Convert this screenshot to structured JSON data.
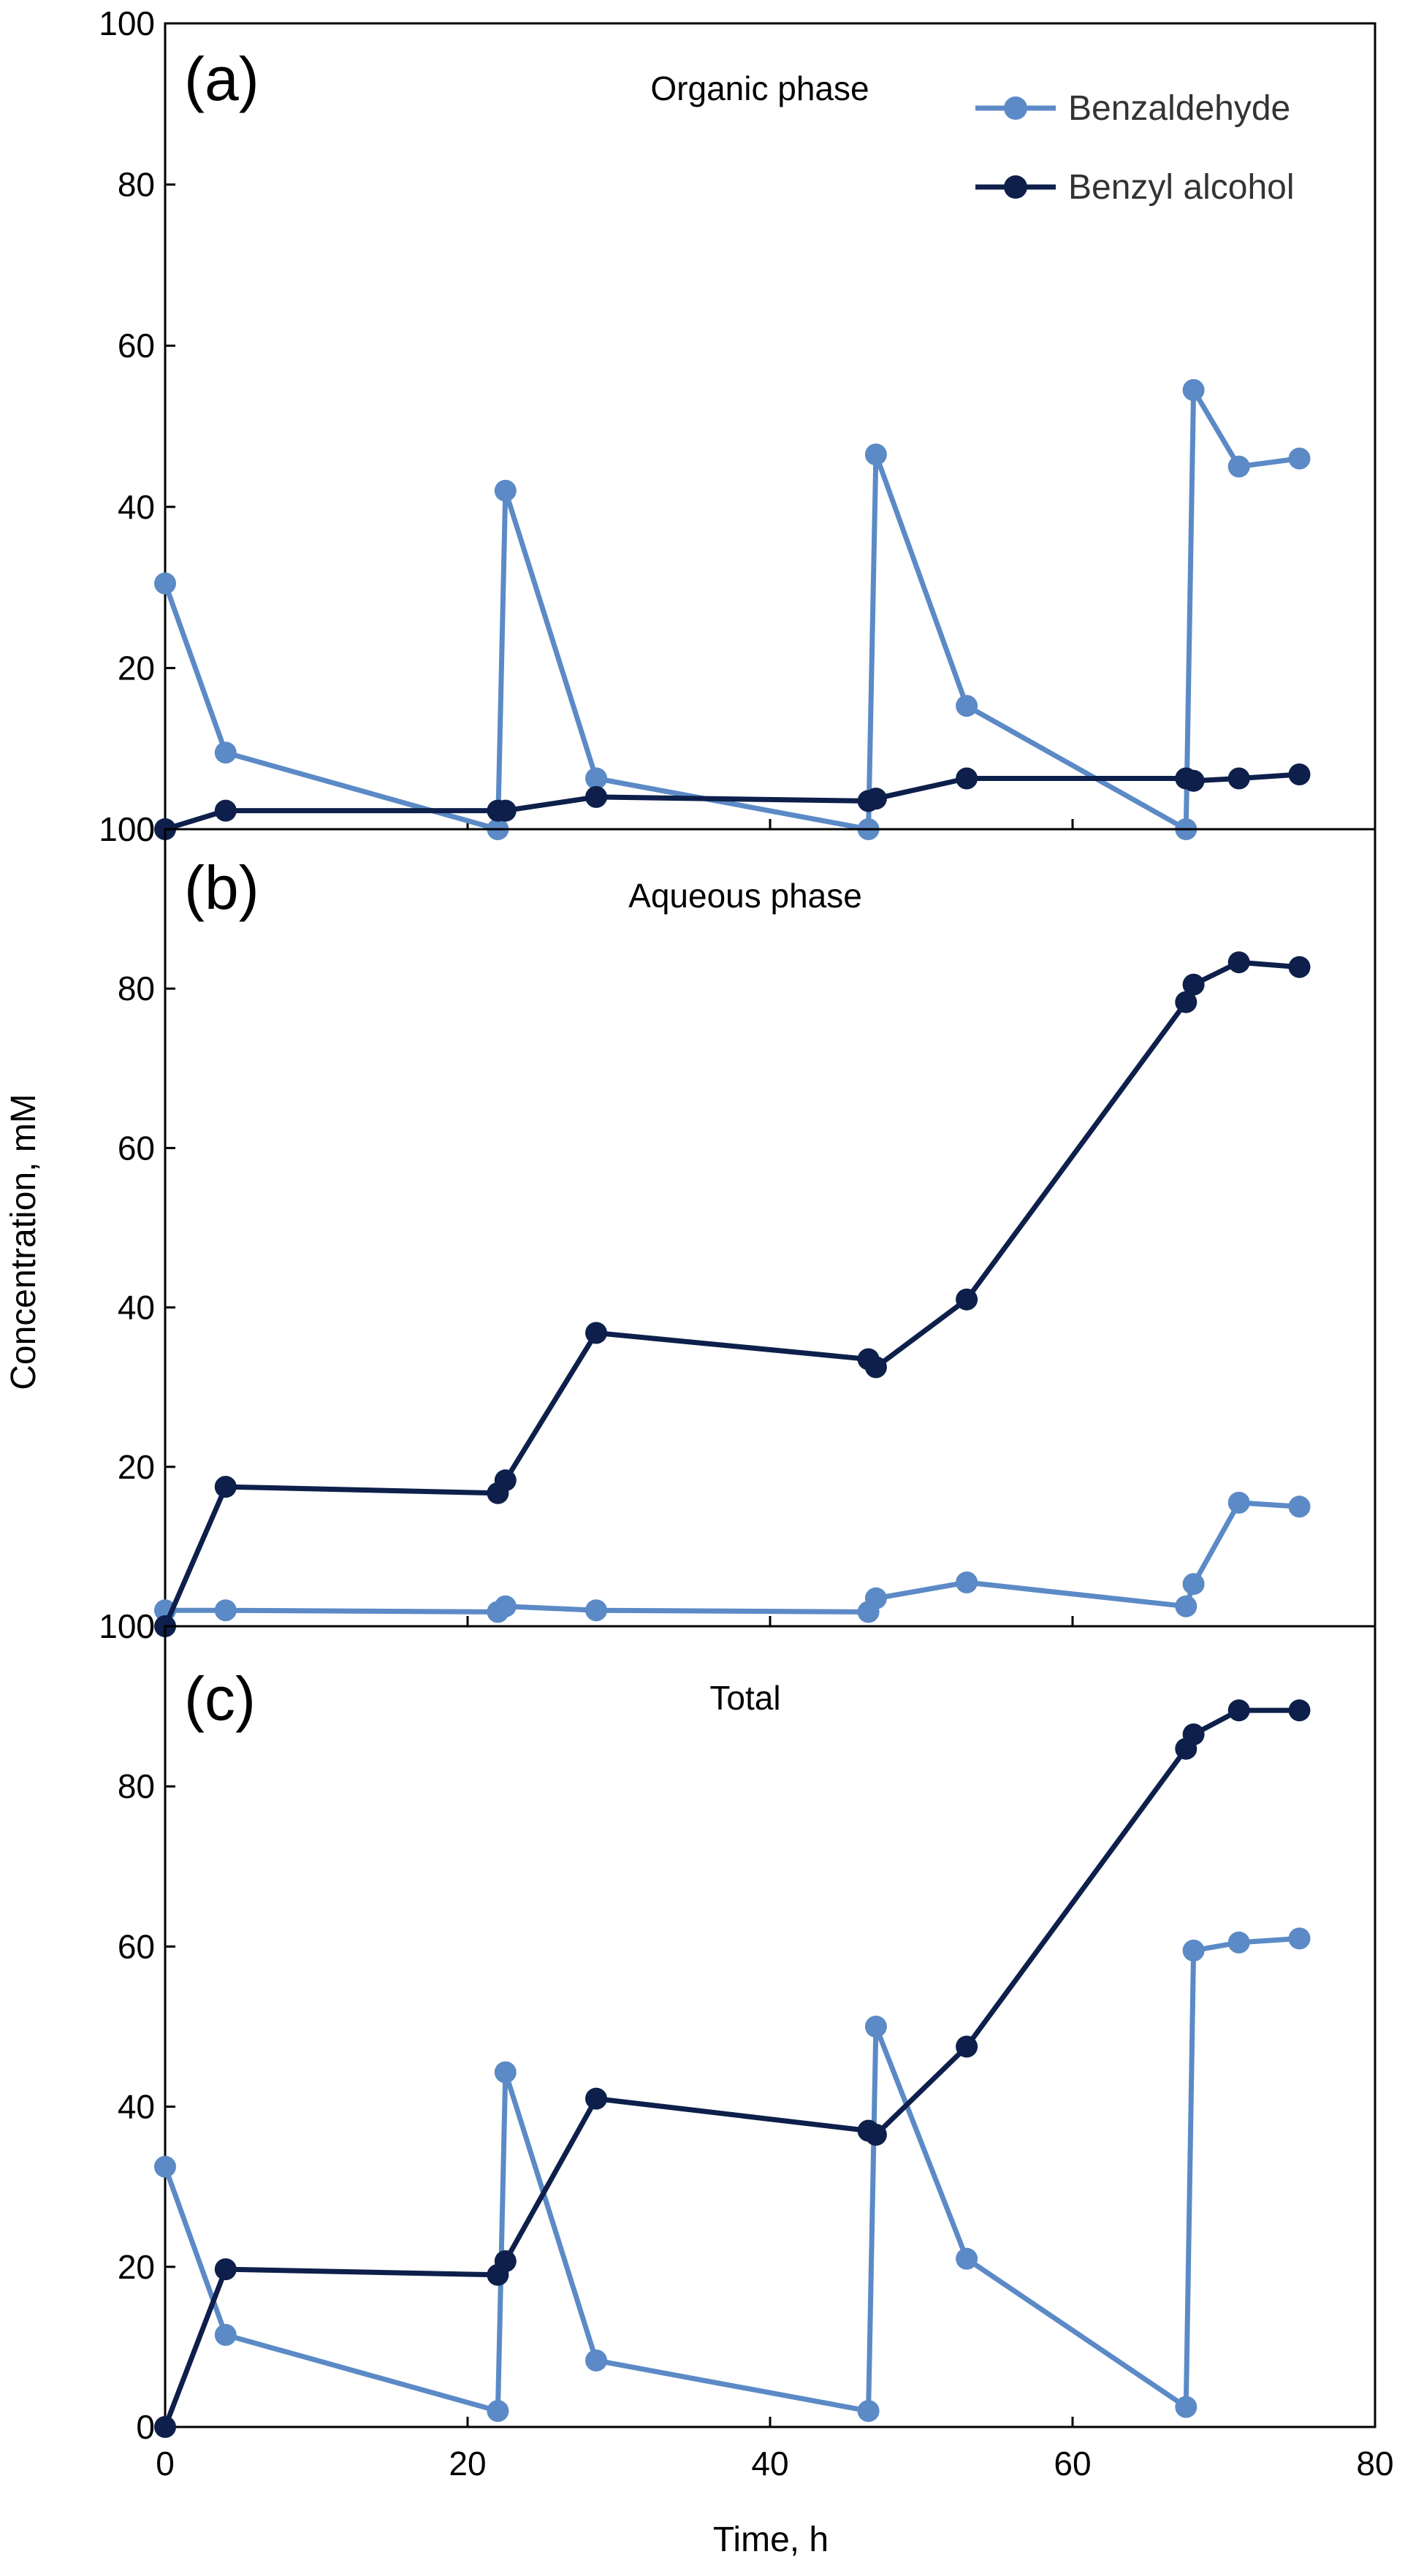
{
  "chart_data": {
    "type": "line",
    "xlabel": "Time, h",
    "ylabel": "Concentration, mM",
    "xlim": [
      0,
      80
    ],
    "x_ticks": [
      "0",
      "20",
      "40",
      "60",
      "80"
    ],
    "colors": {
      "Benzaldehyde": "#5b8ac6",
      "Benzyl alcohol": "#0d1f4a"
    },
    "legend": {
      "placement": "top-right",
      "entries": [
        "Benzaldehyde",
        "Benzyl alcohol"
      ]
    },
    "panels": [
      {
        "tag": "(a)",
        "title": "Organic phase",
        "ylim": [
          0,
          100
        ],
        "y_ticks": [
          "0",
          "20",
          "40",
          "60",
          "80",
          "100"
        ],
        "series": [
          {
            "name": "Benzaldehyde",
            "x": [
              0,
              4,
              22,
              22.5,
              28.5,
              46.5,
              47,
              53,
              67.5,
              68,
              71,
              75
            ],
            "y": [
              30.5,
              9.5,
              0,
              42,
              6.3,
              0,
              46.5,
              15.3,
              0,
              54.5,
              45,
              46
            ]
          },
          {
            "name": "Benzyl alcohol",
            "x": [
              0,
              4,
              22,
              22.5,
              28.5,
              46.5,
              47,
              53,
              67.5,
              68,
              71,
              75
            ],
            "y": [
              0,
              2.3,
              2.3,
              2.3,
              4,
              3.5,
              3.8,
              6.3,
              6.3,
              6,
              6.3,
              6.8
            ]
          }
        ]
      },
      {
        "tag": "(b)",
        "title": "Aqueous phase",
        "ylim": [
          0,
          100
        ],
        "y_ticks": [
          "0",
          "20",
          "40",
          "60",
          "80",
          "100"
        ],
        "series": [
          {
            "name": "Benzaldehyde",
            "x": [
              0,
              4,
              22,
              22.5,
              28.5,
              46.5,
              47,
              53,
              67.5,
              68,
              71,
              75
            ],
            "y": [
              2,
              2,
              1.8,
              2.5,
              2,
              1.8,
              3.5,
              5.5,
              2.5,
              5.3,
              15.5,
              15
            ]
          },
          {
            "name": "Benzyl alcohol",
            "x": [
              0,
              4,
              22,
              22.5,
              28.5,
              46.5,
              47,
              53,
              67.5,
              68,
              71,
              75
            ],
            "y": [
              0,
              17.5,
              16.7,
              18.3,
              36.8,
              33.5,
              32.5,
              41,
              78.3,
              80.5,
              83.3,
              82.7
            ]
          }
        ]
      },
      {
        "tag": "(c)",
        "title": "Total",
        "ylim": [
          0,
          100
        ],
        "y_ticks": [
          "0",
          "20",
          "40",
          "60",
          "80",
          "100"
        ],
        "series": [
          {
            "name": "Benzaldehyde",
            "x": [
              0,
              4,
              22,
              22.5,
              28.5,
              46.5,
              47,
              53,
              67.5,
              68,
              71,
              75
            ],
            "y": [
              32.5,
              11.5,
              2,
              44.3,
              8.3,
              2,
              50,
              21,
              2.5,
              59.5,
              60.5,
              61
            ]
          },
          {
            "name": "Benzyl alcohol",
            "x": [
              0,
              4,
              22,
              22.5,
              28.5,
              46.5,
              47,
              53,
              67.5,
              68,
              71,
              75
            ],
            "y": [
              0,
              19.7,
              19,
              20.7,
              41,
              37,
              36.5,
              47.5,
              84.7,
              86.5,
              89.5,
              89.5
            ]
          }
        ]
      }
    ]
  }
}
